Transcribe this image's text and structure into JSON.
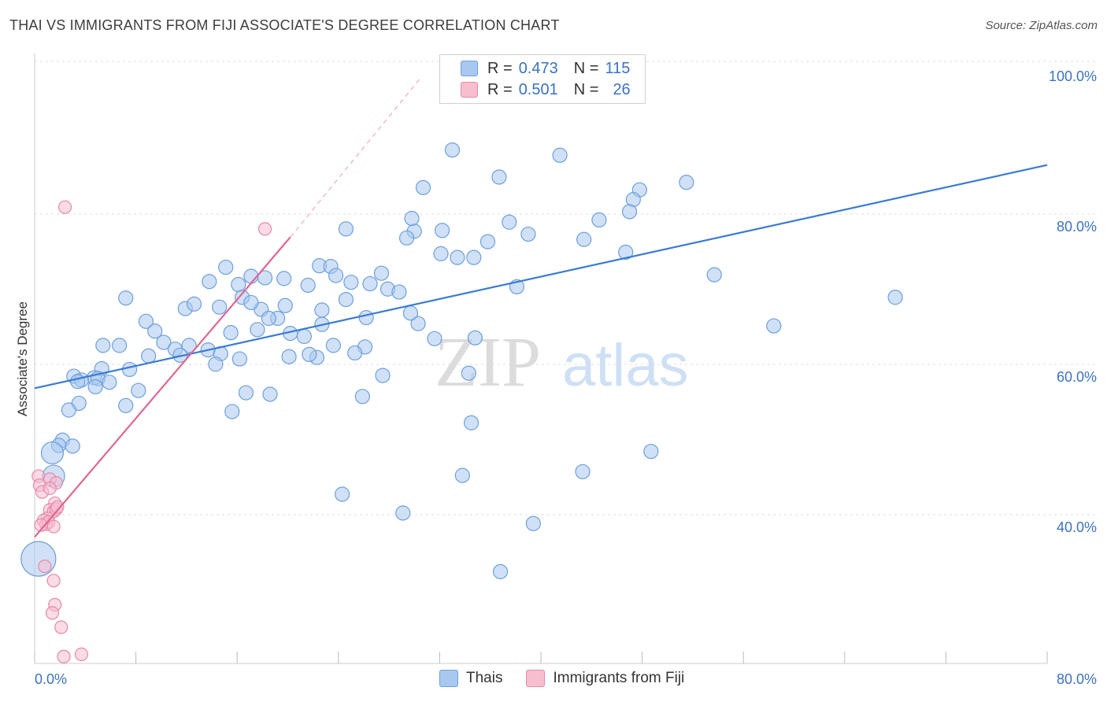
{
  "title": "THAI VS IMMIGRANTS FROM FIJI ASSOCIATE'S DEGREE CORRELATION CHART",
  "source": "Source: ZipAtlas.com",
  "watermark": {
    "zip": "ZIP",
    "atlas": "atlas"
  },
  "legend": {
    "rows": [
      {
        "r_label": "R =",
        "r_value": "0.473",
        "n_label": "N =",
        "n_value": "115",
        "color": "#a9c8f0"
      },
      {
        "r_label": "R =",
        "r_value": "0.501",
        "n_label": "N =",
        "n_value": "26",
        "color": "#f7bed0"
      }
    ]
  },
  "bottom_legend": {
    "thais": "Thais",
    "fiji": "Immigrants from Fiji"
  },
  "chart_data": {
    "type": "scatter",
    "xlabel": "",
    "ylabel": "Associate's Degree",
    "xlim": [
      0,
      80
    ],
    "ylim": [
      20,
      101
    ],
    "x_tick_labels": {
      "left": "0.0%",
      "right": "80.0%"
    },
    "y_ticks": [
      {
        "value": 100,
        "label": "100.0%"
      },
      {
        "value": 80,
        "label": "80.0%"
      },
      {
        "value": 60,
        "label": "60.0%"
      },
      {
        "value": 40,
        "label": "40.0%"
      }
    ],
    "grid": "horizontal dashed",
    "legend_placement": "top-center",
    "series": [
      {
        "name": "Thais",
        "color": "#a9c8f0",
        "stroke": "#6e9fdc",
        "trend": {
          "color": "#3a7bd5",
          "x": [
            0,
            80
          ],
          "y": [
            58.5,
            88.2
          ]
        },
        "points": [
          [
            33,
            90.2
          ],
          [
            41.5,
            89.5
          ],
          [
            30.7,
            85.2
          ],
          [
            36.7,
            86.6
          ],
          [
            51.5,
            85.9
          ],
          [
            47.8,
            84.9
          ],
          [
            47.3,
            83.6
          ],
          [
            47,
            82
          ],
          [
            30,
            79.4
          ],
          [
            32.2,
            79.5
          ],
          [
            44.6,
            80.9
          ],
          [
            29.8,
            81.1
          ],
          [
            37.5,
            80.6
          ],
          [
            24.6,
            79.7
          ],
          [
            39,
            79
          ],
          [
            35.8,
            78
          ],
          [
            43.4,
            78.3
          ],
          [
            29.4,
            78.5
          ],
          [
            32.1,
            76.4
          ],
          [
            33.4,
            75.9
          ],
          [
            34.7,
            75.9
          ],
          [
            46.7,
            76.6
          ],
          [
            53.7,
            73.6
          ],
          [
            68,
            70.6
          ],
          [
            22.5,
            74.8
          ],
          [
            23.4,
            74.7
          ],
          [
            15.1,
            74.6
          ],
          [
            17.1,
            73.4
          ],
          [
            18.2,
            73.2
          ],
          [
            19.7,
            73.1
          ],
          [
            23.8,
            73.5
          ],
          [
            27.4,
            73.8
          ],
          [
            13.8,
            72.7
          ],
          [
            16.1,
            72.3
          ],
          [
            21.6,
            72.2
          ],
          [
            25,
            72.6
          ],
          [
            26.5,
            72.4
          ],
          [
            27.9,
            71.7
          ],
          [
            38.1,
            72
          ],
          [
            28.8,
            71.3
          ],
          [
            7.2,
            70.5
          ],
          [
            16.4,
            70.6
          ],
          [
            24.6,
            70.3
          ],
          [
            19.8,
            69.5
          ],
          [
            11.9,
            69.1
          ],
          [
            14.6,
            69.3
          ],
          [
            17.9,
            69
          ],
          [
            22.7,
            68.9
          ],
          [
            19.2,
            67.8
          ],
          [
            30.3,
            67.1
          ],
          [
            26.2,
            67.9
          ],
          [
            22.7,
            67
          ],
          [
            8.8,
            67.4
          ],
          [
            17.6,
            66.3
          ],
          [
            15.5,
            65.9
          ],
          [
            20.2,
            65.8
          ],
          [
            21.3,
            65.4
          ],
          [
            31.6,
            65.1
          ],
          [
            10.2,
            64.6
          ],
          [
            5.4,
            64.2
          ],
          [
            23.6,
            64.2
          ],
          [
            12.2,
            64.2
          ],
          [
            6.7,
            64.2
          ],
          [
            11.1,
            63.7
          ],
          [
            26.1,
            64
          ],
          [
            25.3,
            63.2
          ],
          [
            13.7,
            63.6
          ],
          [
            14.7,
            63.1
          ],
          [
            9,
            62.8
          ],
          [
            11.5,
            62.9
          ],
          [
            22.3,
            62.6
          ],
          [
            16.2,
            62.4
          ],
          [
            20.1,
            62.7
          ],
          [
            14.3,
            61.7
          ],
          [
            5.3,
            61.1
          ],
          [
            7.5,
            61
          ],
          [
            21.7,
            63
          ],
          [
            3.1,
            60.1
          ],
          [
            4.7,
            59.9
          ],
          [
            3.7,
            59.6
          ],
          [
            5,
            59.8
          ],
          [
            5.9,
            59.3
          ],
          [
            27.5,
            60.2
          ],
          [
            34.3,
            60.5
          ],
          [
            3.4,
            59.4
          ],
          [
            4.8,
            58.7
          ],
          [
            16.7,
            57.9
          ],
          [
            18.6,
            57.7
          ],
          [
            25.9,
            57.4
          ],
          [
            7.2,
            56.2
          ],
          [
            3.5,
            56.5
          ],
          [
            2.7,
            55.6
          ],
          [
            15.6,
            55.4
          ],
          [
            34.5,
            53.9
          ],
          [
            2.2,
            51.6
          ],
          [
            1.9,
            50.9
          ],
          [
            3,
            50.8
          ],
          [
            48.7,
            50.1
          ],
          [
            1.4,
            49.9
          ],
          [
            33.8,
            46.9
          ],
          [
            1.5,
            46.8
          ],
          [
            24.3,
            44.4
          ],
          [
            29.1,
            41.9
          ],
          [
            39.4,
            40.5
          ],
          [
            36.8,
            34.1
          ],
          [
            0.3,
            35.8
          ],
          [
            58.4,
            66.8
          ],
          [
            34.8,
            65.2
          ],
          [
            18.5,
            67.8
          ],
          [
            29.7,
            68.5
          ],
          [
            17.1,
            69.9
          ],
          [
            12.6,
            69.7
          ],
          [
            9.5,
            66.1
          ],
          [
            8.2,
            58.2
          ],
          [
            43.3,
            47.4
          ]
        ],
        "sizes": {
          "0.3,35.8": 22,
          "1.4,49.9": 14,
          "1.5,46.8": 14
        }
      },
      {
        "name": "Immigrants from Fiji",
        "color": "#f7bed0",
        "stroke": "#e58aa9",
        "trend": {
          "color": "#e06690",
          "x": [
            0,
            20.2
          ],
          "y": [
            38.7,
            78.6
          ],
          "dashed_x": [
            20.2,
            30.6
          ],
          "dashed_y": [
            78.6,
            100
          ]
        },
        "points": [
          [
            2.4,
            82.6
          ],
          [
            18.2,
            79.7
          ],
          [
            0.3,
            46.8
          ],
          [
            1.2,
            46.4
          ],
          [
            0.4,
            45.6
          ],
          [
            1.7,
            45.9
          ],
          [
            0.6,
            44.7
          ],
          [
            1.6,
            43.2
          ],
          [
            1.2,
            42.3
          ],
          [
            1.5,
            42.1
          ],
          [
            1.7,
            42.4
          ],
          [
            1,
            41.2
          ],
          [
            0.7,
            40.9
          ],
          [
            0.9,
            40.4
          ],
          [
            1.1,
            40.7
          ],
          [
            1.5,
            40.1
          ],
          [
            0.5,
            40.3
          ],
          [
            1.8,
            42.7
          ],
          [
            1.5,
            32.9
          ],
          [
            0.8,
            34.8
          ],
          [
            1.6,
            29.7
          ],
          [
            1.4,
            28.6
          ],
          [
            2.1,
            26.7
          ],
          [
            3.7,
            23.1
          ],
          [
            2.3,
            22.8
          ],
          [
            1.2,
            45.2
          ]
        ]
      }
    ]
  }
}
